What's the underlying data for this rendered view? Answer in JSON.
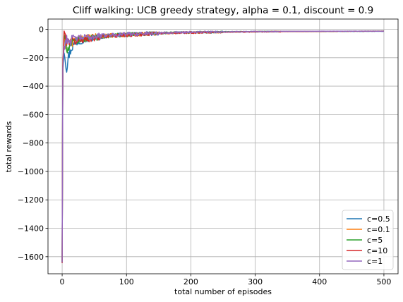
{
  "chart_data": {
    "type": "line",
    "title": "Cliff walking: UCB greedy strategy, alpha = 0.1, discount = 0.9",
    "xlabel": "total number of episodes",
    "ylabel": "total rewards",
    "xlim": [
      -22,
      522
    ],
    "ylim": [
      -1720,
      72
    ],
    "xticks": [
      0,
      100,
      200,
      300,
      400,
      500
    ],
    "yticks": [
      0,
      -200,
      -400,
      -600,
      -800,
      -1000,
      -1200,
      -1400,
      -1600
    ],
    "grid": true,
    "legend_position": "lower right",
    "episodes": 500,
    "series": [
      {
        "name": "c=0.5",
        "color": "#1f77b4",
        "points": [
          [
            0,
            -1640
          ],
          [
            1,
            -290
          ],
          [
            3,
            -130
          ],
          [
            5,
            -210
          ],
          [
            7,
            -270
          ],
          [
            10,
            -180
          ],
          [
            15,
            -120
          ],
          [
            20,
            -95
          ],
          [
            30,
            -75
          ],
          [
            50,
            -55
          ],
          [
            80,
            -40
          ],
          [
            120,
            -30
          ],
          [
            180,
            -22
          ],
          [
            250,
            -18
          ],
          [
            330,
            -15
          ],
          [
            500,
            -14
          ]
        ]
      },
      {
        "name": "c=0.1",
        "color": "#ff7f0e",
        "points": [
          [
            0,
            -1635
          ],
          [
            1,
            -250
          ],
          [
            3,
            -60
          ],
          [
            5,
            -100
          ],
          [
            8,
            -70
          ],
          [
            12,
            -90
          ],
          [
            20,
            -75
          ],
          [
            30,
            -60
          ],
          [
            50,
            -50
          ],
          [
            80,
            -40
          ],
          [
            120,
            -30
          ],
          [
            180,
            -22
          ],
          [
            250,
            -18
          ],
          [
            330,
            -15
          ],
          [
            500,
            -13
          ]
        ]
      },
      {
        "name": "c=5",
        "color": "#2ca02c",
        "points": [
          [
            0,
            -1640
          ],
          [
            1,
            -280
          ],
          [
            3,
            -50
          ],
          [
            5,
            -80
          ],
          [
            8,
            -130
          ],
          [
            12,
            -100
          ],
          [
            20,
            -80
          ],
          [
            30,
            -65
          ],
          [
            50,
            -52
          ],
          [
            80,
            -40
          ],
          [
            120,
            -30
          ],
          [
            180,
            -22
          ],
          [
            250,
            -18
          ],
          [
            330,
            -15
          ],
          [
            500,
            -13
          ]
        ]
      },
      {
        "name": "c=10",
        "color": "#d62728",
        "points": [
          [
            0,
            -1645
          ],
          [
            1,
            -260
          ],
          [
            3,
            -20
          ],
          [
            5,
            -60
          ],
          [
            8,
            -90
          ],
          [
            12,
            -70
          ],
          [
            20,
            -85
          ],
          [
            30,
            -70
          ],
          [
            50,
            -55
          ],
          [
            80,
            -42
          ],
          [
            120,
            -32
          ],
          [
            180,
            -24
          ],
          [
            250,
            -19
          ],
          [
            330,
            -16
          ],
          [
            500,
            -13
          ]
        ]
      },
      {
        "name": "c=1",
        "color": "#9467bd",
        "points": [
          [
            0,
            -1640
          ],
          [
            1,
            -270
          ],
          [
            3,
            -120
          ],
          [
            5,
            -80
          ],
          [
            8,
            -60
          ],
          [
            12,
            -75
          ],
          [
            20,
            -60
          ],
          [
            30,
            -55
          ],
          [
            50,
            -45
          ],
          [
            80,
            -35
          ],
          [
            120,
            -28
          ],
          [
            180,
            -20
          ],
          [
            250,
            -17
          ],
          [
            330,
            -14
          ],
          [
            500,
            -13
          ]
        ]
      }
    ],
    "legend_order": [
      "c=0.5",
      "c=0.1",
      "c=5",
      "c=10",
      "c=1"
    ]
  }
}
